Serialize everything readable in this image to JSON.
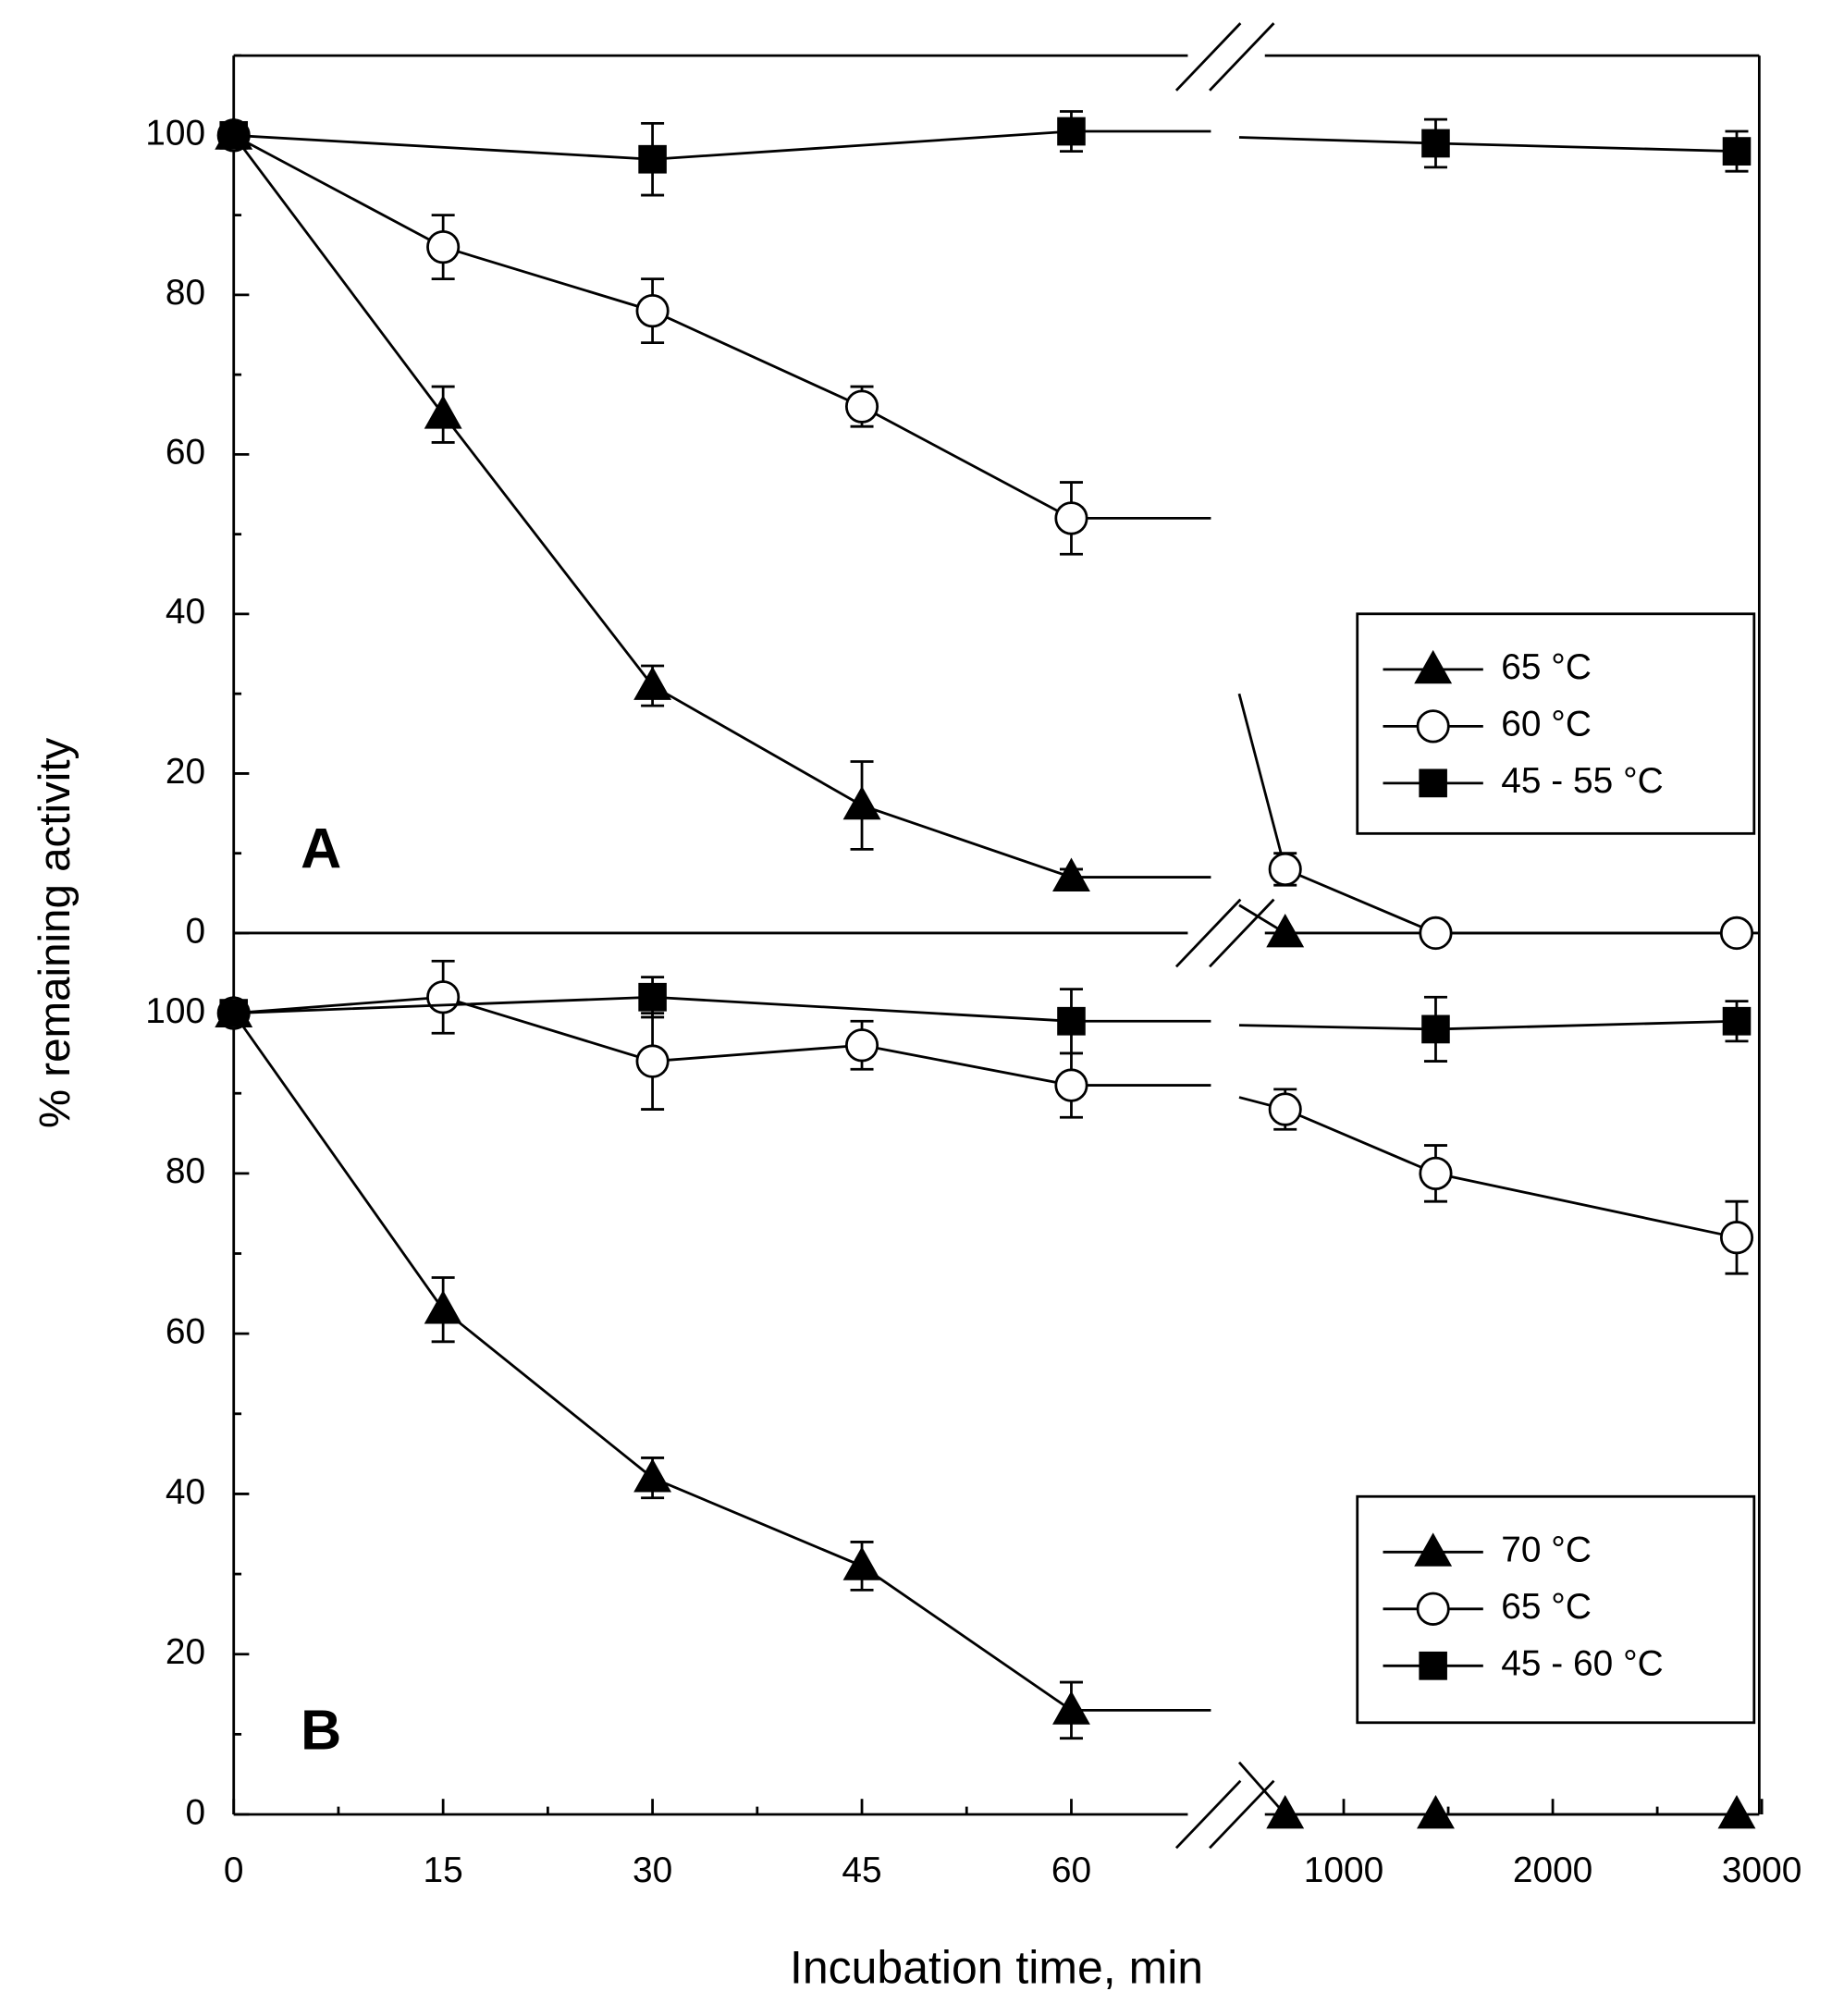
{
  "chart_data": [
    {
      "type": "line",
      "label": "A",
      "ylabel": "% remaining activity",
      "xlim": [
        [
          0,
          70
        ],
        [
          500,
          3000
        ]
      ],
      "ylim": [
        0,
        110
      ],
      "yticks": [
        0,
        20,
        40,
        60,
        80,
        100
      ],
      "yminorticks": [
        10,
        30,
        50,
        70,
        90,
        110
      ],
      "series": [
        {
          "name": "65 °C",
          "marker": "triangle",
          "color": "#000000",
          "x": [
            0,
            15,
            30,
            45,
            60,
            720,
            1440,
            2880
          ],
          "values": [
            100,
            65,
            31,
            16,
            7,
            0,
            null,
            null
          ],
          "errors": [
            null,
            3.5,
            2.5,
            5.5,
            1,
            null,
            null,
            null
          ]
        },
        {
          "name": "60 °C",
          "marker": "circle",
          "color": "#000000",
          "x": [
            0,
            15,
            30,
            45,
            60,
            720,
            1440,
            2880
          ],
          "values": [
            100,
            86,
            78,
            66,
            52,
            8,
            0,
            0
          ],
          "errors": [
            null,
            4,
            4,
            2.5,
            4.5,
            2,
            null,
            null
          ]
        },
        {
          "name": "45 - 55 °C",
          "marker": "square",
          "color": "#000000",
          "x": [
            0,
            30,
            60,
            1440,
            2880
          ],
          "values": [
            100,
            97,
            100.5,
            99,
            98
          ],
          "errors": [
            null,
            4.5,
            2.5,
            3,
            2.5
          ]
        }
      ]
    },
    {
      "type": "line",
      "label": "B",
      "xlabel": "Incubation time, min",
      "xlim": [
        [
          0,
          70
        ],
        [
          500,
          3000
        ]
      ],
      "xticks": [
        0,
        15,
        30,
        45,
        60,
        1000,
        2000,
        3000
      ],
      "xminorticks": [
        7.5,
        22.5,
        37.5,
        52.5,
        1500,
        2500
      ],
      "ylim": [
        0,
        110
      ],
      "yticks": [
        0,
        20,
        40,
        60,
        80,
        100
      ],
      "yminorticks": [
        10,
        30,
        50,
        70,
        90,
        110
      ],
      "series": [
        {
          "name": "70 °C",
          "marker": "triangle",
          "color": "#000000",
          "x": [
            0,
            15,
            30,
            45,
            60,
            720,
            1440,
            2880
          ],
          "values": [
            100,
            63,
            42,
            31,
            13,
            0,
            0,
            0
          ],
          "errors": [
            null,
            4,
            2.5,
            3,
            3.5,
            null,
            null,
            null
          ]
        },
        {
          "name": "65 °C",
          "marker": "circle",
          "color": "#000000",
          "x": [
            0,
            15,
            30,
            45,
            60,
            720,
            1440,
            2880
          ],
          "values": [
            100,
            102,
            94,
            96,
            91,
            88,
            80,
            72
          ],
          "errors": [
            null,
            4.5,
            6,
            3,
            4,
            2.5,
            3.5,
            4.5
          ]
        },
        {
          "name": "45 - 60 °C",
          "marker": "square",
          "color": "#000000",
          "x": [
            0,
            30,
            60,
            1440,
            2880
          ],
          "values": [
            100,
            102,
            99,
            98,
            99
          ],
          "errors": [
            null,
            2.5,
            4,
            4,
            2.5
          ]
        }
      ]
    }
  ]
}
